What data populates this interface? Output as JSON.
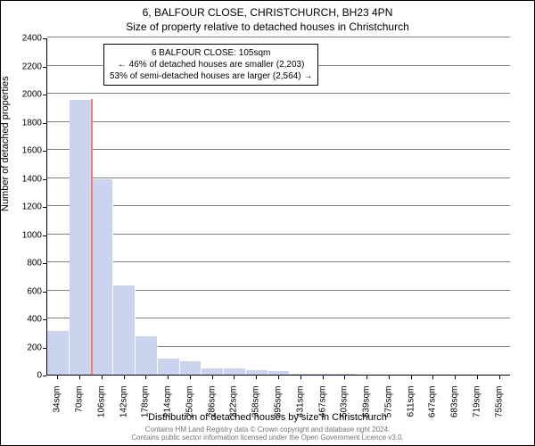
{
  "chart": {
    "title_line1": "6, BALFOUR CLOSE, CHRISTCHURCH, BH23 4PN",
    "title_line2": "Size of property relative to detached houses in Christchurch",
    "ylabel": "Number of detached properties",
    "xlabel": "Distribution of detached houses by size in Christchurch",
    "callout": {
      "line1": "6 BALFOUR CLOSE: 105sqm",
      "line2": "← 46% of detached houses are smaller (2,203)",
      "line3": "53% of semi-detached houses are larger (2,564) →"
    },
    "y_axis": {
      "min": 0,
      "max": 2400,
      "ticks": [
        0,
        200,
        400,
        600,
        800,
        1000,
        1200,
        1400,
        1600,
        1800,
        2000,
        2200,
        2400
      ]
    },
    "x_axis": {
      "labels": [
        "34sqm",
        "70sqm",
        "106sqm",
        "142sqm",
        "178sqm",
        "214sqm",
        "250sqm",
        "286sqm",
        "322sqm",
        "358sqm",
        "395sqm",
        "431sqm",
        "467sqm",
        "503sqm",
        "539sqm",
        "575sqm",
        "611sqm",
        "647sqm",
        "683sqm",
        "719sqm",
        "755sqm"
      ]
    },
    "bars": {
      "values": [
        320,
        1960,
        1400,
        640,
        280,
        120,
        100,
        50,
        50,
        40,
        30,
        15,
        10,
        10,
        8,
        8,
        5,
        5,
        3,
        2,
        2
      ],
      "color": "#cad4ee",
      "border_color": "#fefeff"
    },
    "marker": {
      "bin_index": 2,
      "color": "#f77b7b",
      "value": 105
    },
    "grid_color": "#808080",
    "footer": {
      "line1": "Contains HM Land Registry data © Crown copyright and database right 2024.",
      "line2": "Contains public sector information licensed under the Open Government Licence v3.0."
    }
  }
}
